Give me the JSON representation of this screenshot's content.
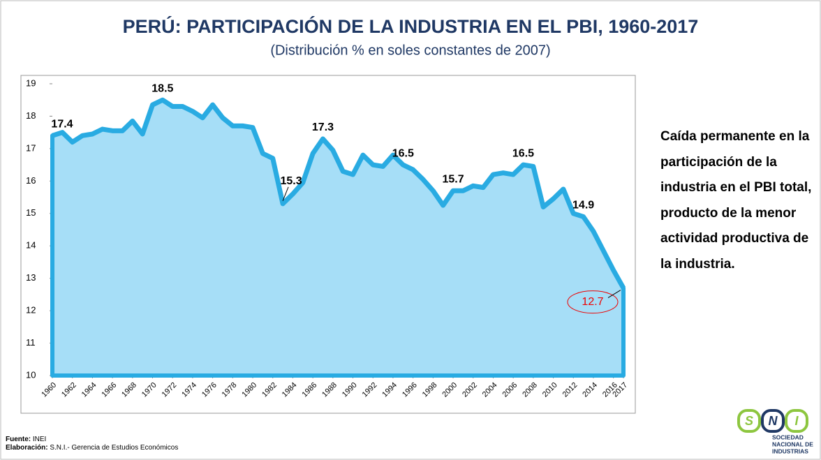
{
  "chart_data": {
    "type": "area",
    "title": "PERÚ: PARTICIPACIÓN DE LA INDUSTRIA EN EL PBI, 1960-2017",
    "subtitle": "(Distribución % en soles constantes de 2007)",
    "x": [
      1960,
      1961,
      1962,
      1963,
      1964,
      1965,
      1966,
      1967,
      1968,
      1969,
      1970,
      1971,
      1972,
      1973,
      1974,
      1975,
      1976,
      1977,
      1978,
      1979,
      1980,
      1981,
      1982,
      1983,
      1984,
      1985,
      1986,
      1987,
      1988,
      1989,
      1990,
      1991,
      1992,
      1993,
      1994,
      1995,
      1996,
      1997,
      1998,
      1999,
      2000,
      2001,
      2002,
      2003,
      2004,
      2005,
      2006,
      2007,
      2008,
      2009,
      2010,
      2011,
      2012,
      2013,
      2014,
      2015,
      2016,
      2017
    ],
    "series": [
      {
        "color": "#29abe2",
        "fill": "#a6def7",
        "values": [
          17.4,
          17.5,
          17.2,
          17.4,
          17.45,
          17.6,
          17.55,
          17.55,
          17.85,
          17.45,
          18.35,
          18.5,
          18.3,
          18.3,
          18.15,
          17.95,
          18.35,
          17.95,
          17.7,
          17.7,
          17.65,
          16.85,
          16.7,
          15.3,
          15.6,
          15.95,
          16.85,
          17.3,
          16.95,
          16.3,
          16.2,
          16.8,
          16.5,
          16.45,
          16.8,
          16.5,
          16.35,
          16.05,
          15.7,
          15.25,
          15.7,
          15.7,
          15.85,
          15.8,
          16.2,
          16.25,
          16.2,
          16.5,
          16.45,
          15.2,
          15.45,
          15.75,
          15.0,
          14.9,
          14.45,
          13.85,
          13.25,
          12.7
        ],
        "value_labels": [
          "17.4",
          null,
          null,
          null,
          null,
          null,
          null,
          null,
          null,
          null,
          null,
          "18.5",
          null,
          null,
          null,
          null,
          null,
          null,
          null,
          null,
          null,
          null,
          null,
          "15.3",
          null,
          null,
          null,
          "17.3",
          null,
          null,
          null,
          null,
          null,
          null,
          null,
          "16.5",
          null,
          null,
          null,
          null,
          "15.7",
          null,
          null,
          null,
          null,
          null,
          null,
          "16.5",
          null,
          null,
          null,
          null,
          null,
          "14.9",
          null,
          null,
          null,
          "12.7"
        ]
      }
    ],
    "xlim": [
      1960,
      2017
    ],
    "xticks": [
      1960,
      1962,
      1964,
      1966,
      1968,
      1970,
      1972,
      1974,
      1976,
      1978,
      1980,
      1982,
      1984,
      1986,
      1988,
      1990,
      1992,
      1994,
      1996,
      1998,
      2000,
      2002,
      2004,
      2006,
      2008,
      2010,
      2012,
      2014,
      2016,
      2017
    ],
    "ylim": [
      10,
      19
    ],
    "yticks": [
      10,
      11,
      12,
      13,
      14,
      15,
      16,
      17,
      18,
      19
    ],
    "grid": false
  },
  "side_text": "Caída permanente en la participación de la industria en el PBI total, producto de la menor actividad productiva de la industria.",
  "source_label": "Fuente:",
  "source": "INEI",
  "credit_label": "Elaboración:",
  "credit": "S.N.I.- Gerencia de Estudios Económicos",
  "logo": {
    "letters": [
      "S",
      "N",
      "I"
    ],
    "name": [
      "SOCIEDAD",
      "NACIONAL DE",
      "INDUSTRIAS"
    ]
  }
}
